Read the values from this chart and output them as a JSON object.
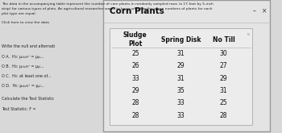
{
  "title": "Corn Plants",
  "col_headers": [
    "Sludge\nPlot",
    "Spring Disk",
    "No Till"
  ],
  "rows": [
    [
      25,
      31,
      30
    ],
    [
      26,
      29,
      27
    ],
    [
      33,
      31,
      29
    ],
    [
      29,
      35,
      31
    ],
    [
      28,
      33,
      25
    ],
    [
      28,
      33,
      28
    ]
  ],
  "bg_outer": "#d8d8d8",
  "bg_window": "#e8e8e8",
  "bg_table": "#f0f0f0",
  "title_fontsize": 7.5,
  "header_fontsize": 5.5,
  "data_fontsize": 5.5,
  "left_text_color": "#222222",
  "left_texts": [
    "The data in the accompanying table represent the number of corn plants in randomly sampled rows (a 17-foot by 5-inch",
    "strip) for various types of plots. An agricultural researcher wants to know whether the mean numbers of plants for each",
    "plot type are equal.",
    "",
    "Click here to view the data"
  ],
  "option_texts": [
    "Write the null and alternati",
    "O A.  H₀: μₛₗᵤ₉ᵣᵉ = μₚₗ...",
    "O B.  H₀: μₛₗᵤ₉ᵣᵉ = μₚₗ...",
    "O C.  H₀: at least one of...",
    "O D.  H₀: μₛₗᵤ₉ᵣᵉ = μₚₗ...",
    "Calculate the Test Statistic",
    "Test Statistic: F ="
  ]
}
